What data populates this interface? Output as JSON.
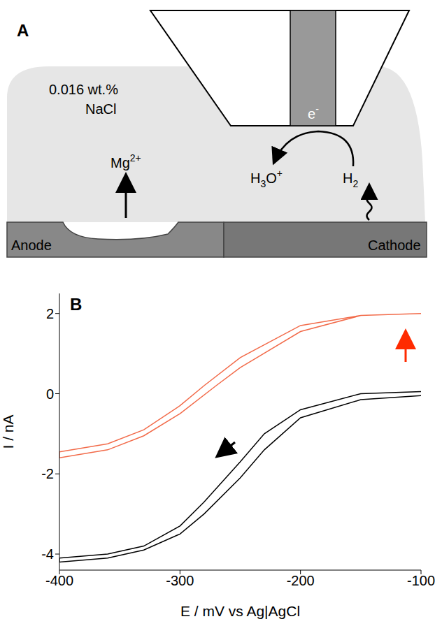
{
  "diagram": {
    "label": "A",
    "solution": [
      "0.016 wt.%",
      "NaCl"
    ],
    "anode": "Anode",
    "cathode": "Cathode",
    "species": {
      "magnesium": {
        "text": "Mg",
        "sup": "2+"
      },
      "electron": {
        "text": "e",
        "sup": "-"
      },
      "hydronium": {
        "text": "H",
        "sub": "3",
        "rest": "O",
        "sup": "+"
      },
      "hydrogen": {
        "text": "H",
        "sub": "2"
      }
    }
  },
  "chart_data": {
    "type": "line",
    "label": "B",
    "xlabel": "E / mV vs Ag|AgCl",
    "ylabel": "I / nA",
    "xlim": [
      -400,
      -100
    ],
    "xticks": [
      -400,
      -300,
      -200,
      -100
    ],
    "ylim": [
      -4.4,
      2.5
    ],
    "yticks": [
      -4,
      -2,
      0,
      2
    ],
    "series": [
      {
        "color": "#f26b4a",
        "x": [
          -100,
          -150,
          -200,
          -250,
          -280,
          -300,
          -330,
          -360,
          -400,
          -400,
          -360,
          -330,
          -300,
          -270,
          -250,
          -200,
          -150,
          -100
        ],
        "values": [
          2.0,
          1.95,
          1.7,
          0.9,
          0.2,
          -0.3,
          -0.9,
          -1.25,
          -1.45,
          -1.6,
          -1.4,
          -1.05,
          -0.5,
          0.2,
          0.65,
          1.55,
          1.95,
          2.0
        ]
      },
      {
        "color": "#000000",
        "x": [
          -100,
          -150,
          -200,
          -230,
          -250,
          -280,
          -300,
          -330,
          -360,
          -400,
          -400,
          -360,
          -330,
          -300,
          -280,
          -250,
          -230,
          -200,
          -150,
          -100
        ],
        "values": [
          0.05,
          0.0,
          -0.4,
          -1.0,
          -1.7,
          -2.7,
          -3.3,
          -3.8,
          -4.0,
          -4.1,
          -4.2,
          -4.1,
          -3.9,
          -3.5,
          -3.0,
          -2.1,
          -1.4,
          -0.6,
          -0.15,
          -0.05
        ]
      }
    ]
  }
}
